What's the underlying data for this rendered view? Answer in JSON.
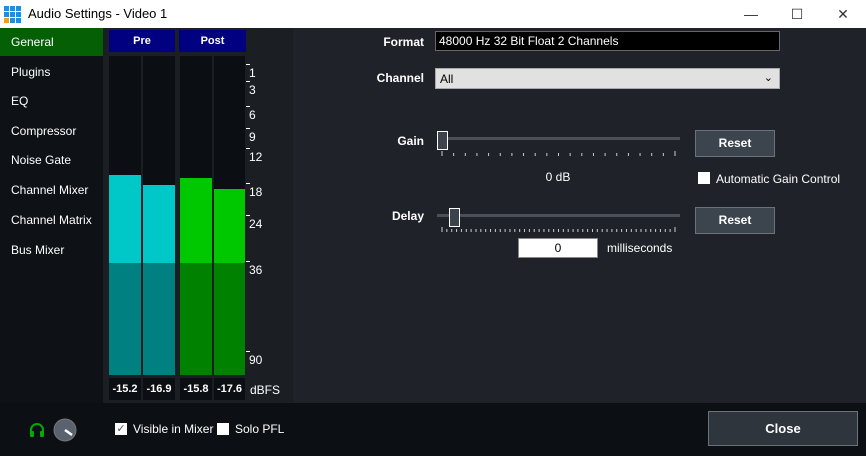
{
  "window": {
    "title": "Audio Settings - Video 1",
    "minimize": "—",
    "maximize": "☐",
    "close": "✕"
  },
  "sidebar": {
    "items": [
      {
        "label": "General",
        "active": true
      },
      {
        "label": "Plugins"
      },
      {
        "label": "EQ"
      },
      {
        "label": "Compressor"
      },
      {
        "label": "Noise Gate"
      },
      {
        "label": "Channel Mixer"
      },
      {
        "label": "Channel Matrix"
      },
      {
        "label": "Bus Mixer"
      }
    ]
  },
  "meters": {
    "pre_label": "Pre",
    "post_label": "Post",
    "unit": "dBFS",
    "scale": [
      "1",
      "3",
      "6",
      "9",
      "12",
      "18",
      "24",
      "36",
      "90"
    ],
    "channels": [
      {
        "value": "-15.2",
        "level": -15.2,
        "color": "#00c8c8"
      },
      {
        "value": "-16.9",
        "level": -16.9,
        "color": "#00c8c8"
      },
      {
        "value": "-15.8",
        "level": -15.8,
        "color": "#00c800"
      },
      {
        "value": "-17.6",
        "level": -17.6,
        "color": "#00c800"
      }
    ]
  },
  "format": {
    "label": "Format",
    "value": "48000 Hz 32 Bit Float 2 Channels"
  },
  "channel": {
    "label": "Channel",
    "value": "All"
  },
  "gain": {
    "label": "Gain",
    "value_text": "0 dB",
    "slider_fraction": 0,
    "reset": "Reset",
    "agc_label": "Automatic Gain Control",
    "agc_checked": false
  },
  "delay": {
    "label": "Delay",
    "value": "0",
    "unit": "milliseconds",
    "slider_fraction": 0.05,
    "reset": "Reset"
  },
  "bottom": {
    "visible_in_mixer": "Visible in Mixer",
    "visible_checked": true,
    "solo_pfl": "Solo PFL",
    "solo_checked": false,
    "close": "Close"
  }
}
